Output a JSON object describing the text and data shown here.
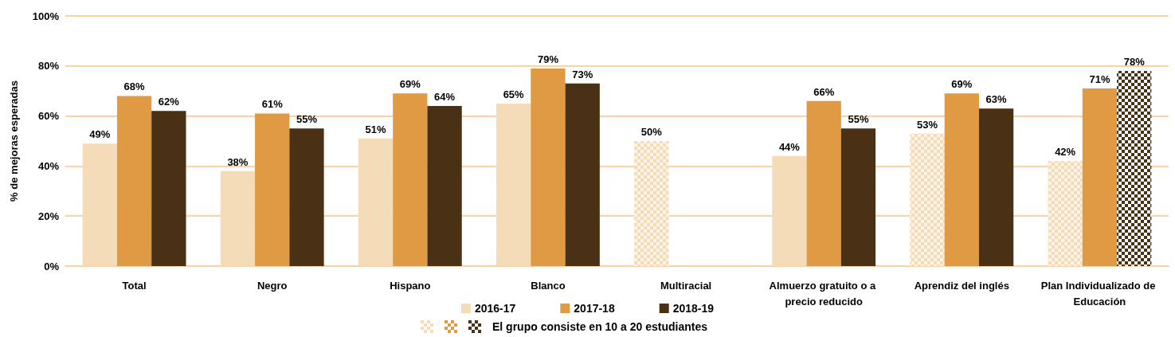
{
  "chart_data": {
    "type": "bar",
    "ylabel": "% de mejoras esperadas",
    "categories": [
      "Total",
      "Negro",
      "Hispano",
      "Blanco",
      "Multiracial",
      "Almuerzo gratuito o a precio reducido",
      "Aprendiz del inglés",
      "Plan Individualizado de Educación"
    ],
    "series": [
      {
        "name": "2016-17",
        "color": "#f5dcb9",
        "colors": [
          "#f5dcb9",
          "#f5dcb9",
          "#f5dcb9",
          "#f5dcb9",
          "#fdf3e6",
          "#f5dcb9",
          "#fdf3e6",
          "#fdf3e6"
        ],
        "values": [
          49,
          38,
          51,
          65,
          50,
          44,
          53,
          42
        ],
        "value_labels": [
          "49%",
          "38%",
          "51%",
          "65%",
          "50%",
          "44%",
          "53%",
          "42%"
        ]
      },
      {
        "name": "2017-18",
        "color": "#e09a43",
        "colors": [
          "#e09a43",
          "#e09a43",
          "#e09a43",
          "#e09a43",
          "#e09a43",
          "#e09a43",
          "#e09a43",
          "#e09a43"
        ],
        "values": [
          68,
          61,
          69,
          79,
          null,
          66,
          69,
          71
        ],
        "value_labels": [
          "68%",
          "61%",
          "69%",
          "79%",
          null,
          "66%",
          "69%",
          "71%"
        ]
      },
      {
        "name": "2018-19",
        "color": "#4a3115",
        "colors": [
          "#4a3115",
          "#4a3115",
          "#4a3115",
          "#4a3115",
          "#4a3115",
          "#4a3115",
          "#4a3115",
          "#ffffff"
        ],
        "values": [
          62,
          55,
          64,
          73,
          null,
          55,
          63,
          78
        ],
        "value_labels": [
          "62%",
          "55%",
          "64%",
          "73%",
          null,
          "55%",
          "63%",
          "78%"
        ]
      }
    ],
    "ylim": [
      0,
      100
    ],
    "yticks": [
      {
        "value": 0,
        "label": "0%"
      },
      {
        "value": 20,
        "label": "20%"
      },
      {
        "value": 40,
        "label": "40%"
      },
      {
        "value": 60,
        "label": "60%"
      },
      {
        "value": 80,
        "label": "80%"
      },
      {
        "value": 100,
        "label": "100%"
      }
    ],
    "grid": "y",
    "legend": "bottom",
    "annotations": [
      "El grupo consiste en 10 a 20 estudiantes"
    ]
  }
}
